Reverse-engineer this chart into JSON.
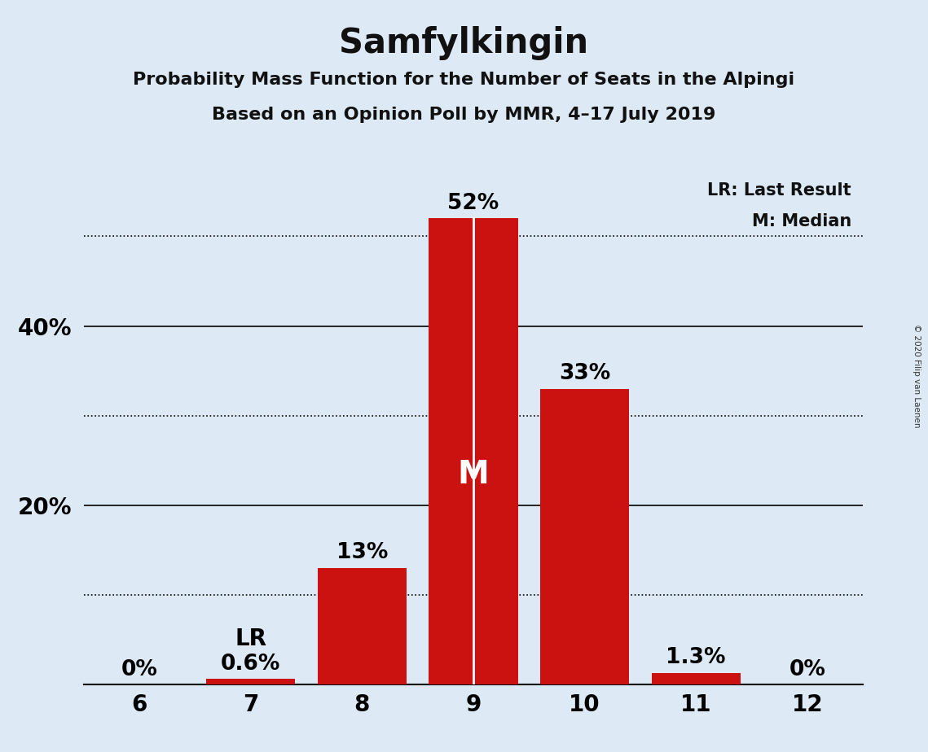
{
  "title": "Samfylkingin",
  "subtitle1": "Probability Mass Function for the Number of Seats in the Alpingi",
  "subtitle2": "Based on an Opinion Poll by MMR, 4–17 July 2019",
  "copyright": "© 2020 Filip van Laenen",
  "categories": [
    6,
    7,
    8,
    9,
    10,
    11,
    12
  ],
  "values": [
    0.0,
    0.006,
    0.13,
    0.52,
    0.33,
    0.013,
    0.0
  ],
  "bar_color": "#cc1111",
  "background_color": "#ddeaf5",
  "bar_labels": [
    "0%",
    "0.6%",
    "13%",
    "52%",
    "33%",
    "1.3%",
    "0%"
  ],
  "lr_bar_index": 1,
  "median_bar_index": 3,
  "ylim": [
    0,
    0.575
  ],
  "solid_gridlines": [
    0.2,
    0.4
  ],
  "dotted_gridlines": [
    0.1,
    0.3,
    0.5
  ],
  "ytick_positions": [
    0.2,
    0.4
  ],
  "ytick_labels": [
    "20%",
    "40%"
  ],
  "legend_text1": "LR: Last Result",
  "legend_text2": "M: Median",
  "title_fontsize": 30,
  "subtitle_fontsize": 16,
  "axis_fontsize": 20,
  "bar_label_fontsize": 19,
  "annotation_fontsize": 20,
  "median_label_fontsize": 28
}
